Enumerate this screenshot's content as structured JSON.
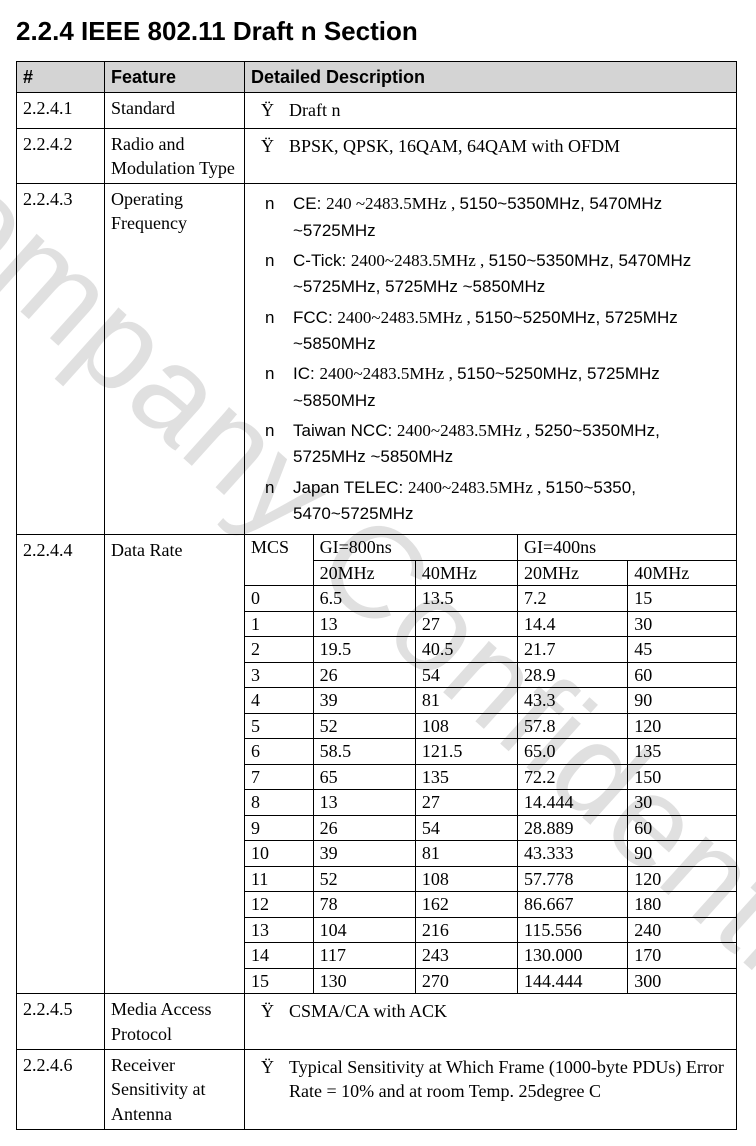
{
  "title": "2.2.4 IEEE 802.11 Draft n Section",
  "watermark": "Company Confidential",
  "headers": {
    "num": "#",
    "feature": "Feature",
    "desc": "Detailed Description"
  },
  "rows": {
    "r1": {
      "num": "2.2.4.1",
      "feature": "Standard",
      "bullets": [
        "Draft n"
      ]
    },
    "r2": {
      "num": "2.2.4.2",
      "feature": "Radio and Modulation Type",
      "bullets": [
        "BPSK, QPSK, 16QAM, 64QAM with OFDM"
      ]
    },
    "r3": {
      "num": "2.2.4.3",
      "feature": "Operating Frequency",
      "items": [
        {
          "label": "CE: ",
          "body": "240 ~2483.5MHz , ",
          "tail": "5150~5350MHz, 5470MHz ~5725MHz"
        },
        {
          "label": "C-Tick: ",
          "body": "2400~2483.5MHz , ",
          "tail": "5150~5350MHz, 5470MHz ~5725MHz, 5725MHz ~5850MHz"
        },
        {
          "label": "FCC: ",
          "body": "2400~2483.5MHz , ",
          "tail": "5150~5250MHz, 5725MHz ~5850MHz"
        },
        {
          "label": "IC: ",
          "body": "2400~2483.5MHz , ",
          "tail": "5150~5250MHz, 5725MHz ~5850MHz"
        },
        {
          "label": "Taiwan NCC: ",
          "body": "2400~2483.5MHz , ",
          "tail": "5250~5350MHz, 5725MHz ~5850MHz"
        },
        {
          "label": "Japan TELEC: ",
          "body": "2400~2483.5MHz , ",
          "tail": "5150~5350, 5470~5725MHz"
        }
      ]
    },
    "r4": {
      "num": "2.2.4.4",
      "feature": "Data Rate",
      "mcs_label": "MCS",
      "gi800": "GI=800ns",
      "gi400": "GI=400ns",
      "b20": "20MHz",
      "b40": "40MHz",
      "rows": [
        {
          "m": "0",
          "a": "6.5",
          "b": "13.5",
          "c": "7.2",
          "d": "15"
        },
        {
          "m": "1",
          "a": "13",
          "b": "27",
          "c": "14.4",
          "d": "30"
        },
        {
          "m": "2",
          "a": "19.5",
          "b": "40.5",
          "c": "21.7",
          "d": "45"
        },
        {
          "m": "3",
          "a": "26",
          "b": "54",
          "c": "28.9",
          "d": "60"
        },
        {
          "m": "4",
          "a": "39",
          "b": "81",
          "c": "43.3",
          "d": "90"
        },
        {
          "m": "5",
          "a": "52",
          "b": "108",
          "c": "57.8",
          "d": "120"
        },
        {
          "m": "6",
          "a": "58.5",
          "b": "121.5",
          "c": "65.0",
          "d": "135"
        },
        {
          "m": "7",
          "a": "65",
          "b": "135",
          "c": "72.2",
          "d": "150"
        },
        {
          "m": "8",
          "a": "13",
          "b": "27",
          "c": "14.444",
          "d": "30"
        },
        {
          "m": "9",
          "a": "26",
          "b": "54",
          "c": "28.889",
          "d": "60"
        },
        {
          "m": "10",
          "a": "39",
          "b": "81",
          "c": "43.333",
          "d": "90"
        },
        {
          "m": "11",
          "a": "52",
          "b": "108",
          "c": "57.778",
          "d": "120"
        },
        {
          "m": "12",
          "a": "78",
          "b": "162",
          "c": "86.667",
          "d": "180"
        },
        {
          "m": "13",
          "a": "104",
          "b": "216",
          "c": "115.556",
          "d": "240"
        },
        {
          "m": "14",
          "a": "117",
          "b": "243",
          "c": "130.000",
          "d": "170"
        },
        {
          "m": "15",
          "a": "130",
          "b": "270",
          "c": "144.444",
          "d": "300"
        }
      ]
    },
    "r5": {
      "num": "2.2.4.5",
      "feature": "Media Access Protocol",
      "bullets": [
        "CSMA/CA with ACK"
      ]
    },
    "r6": {
      "num": "2.2.4.6",
      "feature": "Receiver Sensitivity at Antenna",
      "bullets": [
        "Typical Sensitivity at Which Frame (1000-byte PDUs) Error Rate = 10% and at room Temp. 25degree C"
      ]
    }
  }
}
